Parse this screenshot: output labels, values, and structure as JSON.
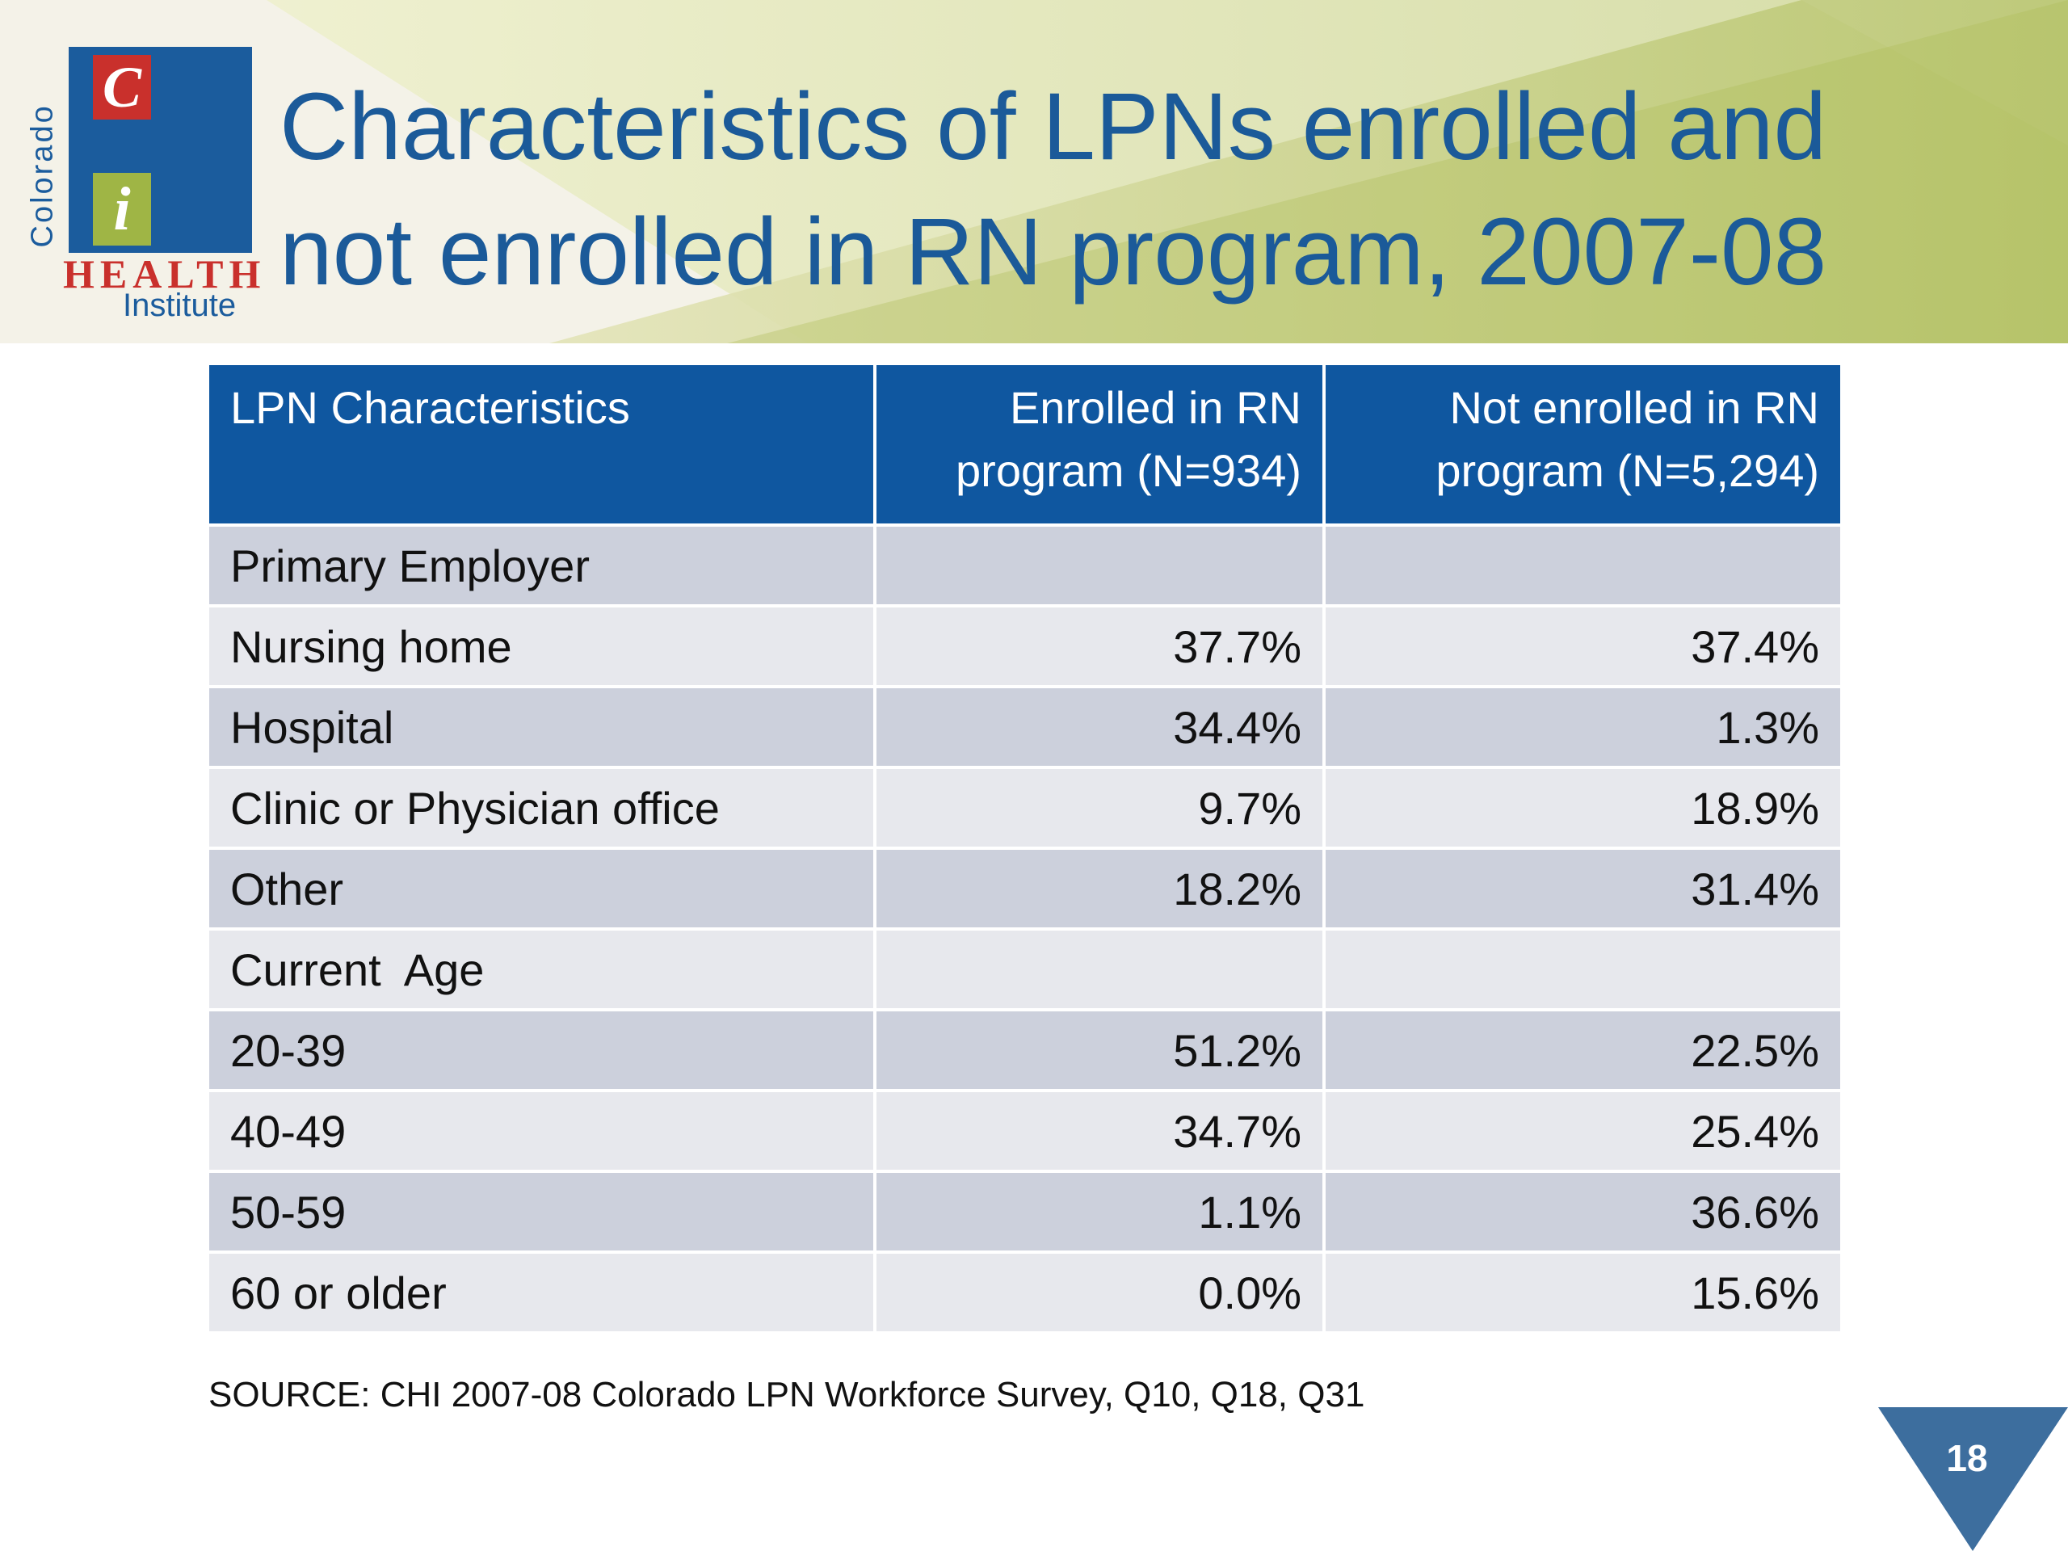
{
  "logo": {
    "letter_c": "C",
    "letter_i": "i",
    "state": "Colorado",
    "health": "HEALTH",
    "institute": "Institute"
  },
  "title": {
    "line1": "Characteristics of LPNs enrolled and",
    "line2": "not enrolled in RN program, 2007-08"
  },
  "table": {
    "headers": [
      {
        "line1": "LPN Characteristics",
        "line2": ""
      },
      {
        "line1": "Enrolled in RN",
        "line2": "program (N=934)"
      },
      {
        "line1": "Not enrolled in RN",
        "line2": "program (N=5,294)"
      }
    ],
    "rows": [
      {
        "label": "Primary Employer",
        "enrolled": "",
        "not_enrolled": ""
      },
      {
        "label": "Nursing home",
        "enrolled": "37.7%",
        "not_enrolled": "37.4%"
      },
      {
        "label": "Hospital",
        "enrolled": "34.4%",
        "not_enrolled": "1.3%"
      },
      {
        "label": "Clinic or Physician office",
        "enrolled": "9.7%",
        "not_enrolled": "18.9%"
      },
      {
        "label": "Other",
        "enrolled": "18.2%",
        "not_enrolled": "31.4%"
      },
      {
        "label": "Current  Age",
        "enrolled": "",
        "not_enrolled": ""
      },
      {
        "label": "20-39",
        "enrolled": "51.2%",
        "not_enrolled": "22.5%"
      },
      {
        "label": "40-49",
        "enrolled": "34.7%",
        "not_enrolled": "25.4%"
      },
      {
        "label": "50-59",
        "enrolled": "1.1%",
        "not_enrolled": "36.6%"
      },
      {
        "label": "60 or older",
        "enrolled": "0.0%",
        "not_enrolled": "15.6%"
      }
    ]
  },
  "source": "SOURCE: CHI 2007-08 Colorado LPN Workforce Survey, Q10, Q18, Q31",
  "page_number": "18",
  "colors": {
    "brand_blue": "#1b5a99",
    "header_blue": "#0f57a0",
    "section_blue": "#1872c4",
    "logo_red": "#c9302c",
    "logo_green": "#9fb545",
    "row_dark": "#ccd0dc",
    "row_light": "#e7e8ed",
    "page_marker": "#3d6e9e"
  }
}
